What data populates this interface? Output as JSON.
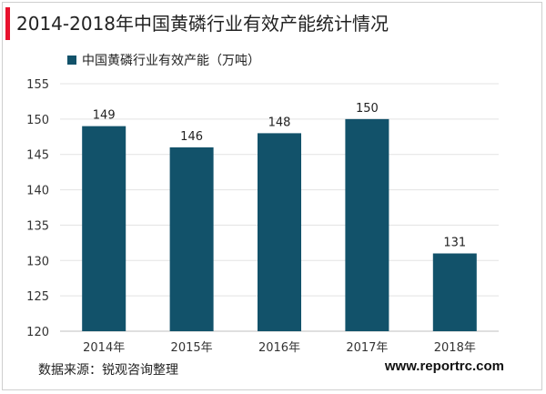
{
  "title": "2014-2018年中国黄磷行业有效产能统计情况",
  "legend_label": "中国黄磷行业有效产能（万吨）",
  "source": "数据来源：锐观咨询整理",
  "website": "www.reportrc.com",
  "colors": {
    "bar": "#12526a",
    "accent": "#e8112d"
  },
  "chart_data": {
    "type": "bar",
    "title": "2014-2018年中国黄磷行业有效产能统计情况",
    "categories": [
      "2014年",
      "2015年",
      "2016年",
      "2017年",
      "2018年"
    ],
    "series": [
      {
        "name": "中国黄磷行业有效产能（万吨）",
        "values": [
          149,
          146,
          148,
          150,
          131
        ]
      }
    ],
    "data_labels": [
      "149",
      "146",
      "148",
      "150",
      "131"
    ],
    "ylim": [
      120,
      155
    ],
    "yticks": [
      120,
      125,
      130,
      135,
      140,
      145,
      150,
      155
    ],
    "grid": true,
    "legend_position": "top-left",
    "xlabel": "",
    "ylabel": ""
  }
}
